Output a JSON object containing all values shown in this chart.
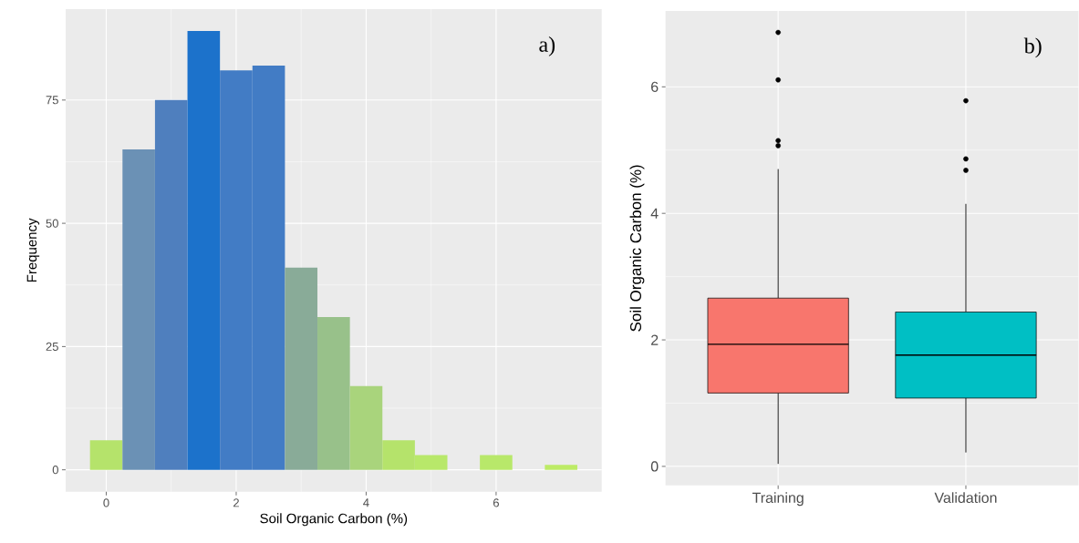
{
  "chart_data": [
    {
      "type": "histogram",
      "xlabel": "Soil Organic Carbon (%)",
      "ylabel": "Frequency",
      "bins": [
        -0.25,
        0.25,
        0.75,
        1.25,
        1.75,
        2.25,
        2.75,
        3.25,
        3.75,
        4.25,
        4.75,
        5.25,
        5.75,
        6.25,
        6.75,
        7.25
      ],
      "values": [
        6,
        65,
        75,
        89,
        81,
        82,
        41,
        31,
        17,
        6,
        3,
        0,
        3,
        0,
        1
      ],
      "colors": [
        "#b5e36b",
        "#6b91b5",
        "#4f7fbe",
        "#1c72cb",
        "#427cc5",
        "#427cc5",
        "#89ab98",
        "#98c18a",
        "#a9d47c",
        "#b5e36b",
        "#b8e86a",
        "#bdeb66",
        "#b8e86a",
        "#bdeb66",
        "#bdeb66"
      ],
      "xlim": [
        -0.625,
        7.625
      ],
      "ylim": [
        -4.45,
        93.45
      ],
      "xticks": [
        0,
        2,
        4,
        6
      ],
      "yticks": [
        0,
        25,
        50,
        75
      ],
      "grid": true,
      "annotations": [
        "a)"
      ]
    },
    {
      "type": "box",
      "ylabel": "Soil Organic Carbon (%)",
      "categories": [
        "Training",
        "Validation"
      ],
      "boxes": [
        {
          "low": 0.04,
          "q1": 1.16,
          "median": 1.93,
          "q3": 2.66,
          "high": 4.7,
          "outliers": [
            6.86,
            6.11,
            5.15,
            5.07
          ]
        },
        {
          "low": 0.22,
          "q1": 1.08,
          "median": 1.76,
          "q3": 2.44,
          "high": 4.15,
          "outliers": [
            5.78,
            4.86,
            4.68
          ]
        }
      ],
      "colors": [
        "#f8766d",
        "#00bfc4"
      ],
      "ylim": [
        -0.3,
        7.2
      ],
      "yticks": [
        0,
        2,
        4,
        6
      ],
      "grid": true,
      "annotations": [
        "b)"
      ]
    }
  ]
}
